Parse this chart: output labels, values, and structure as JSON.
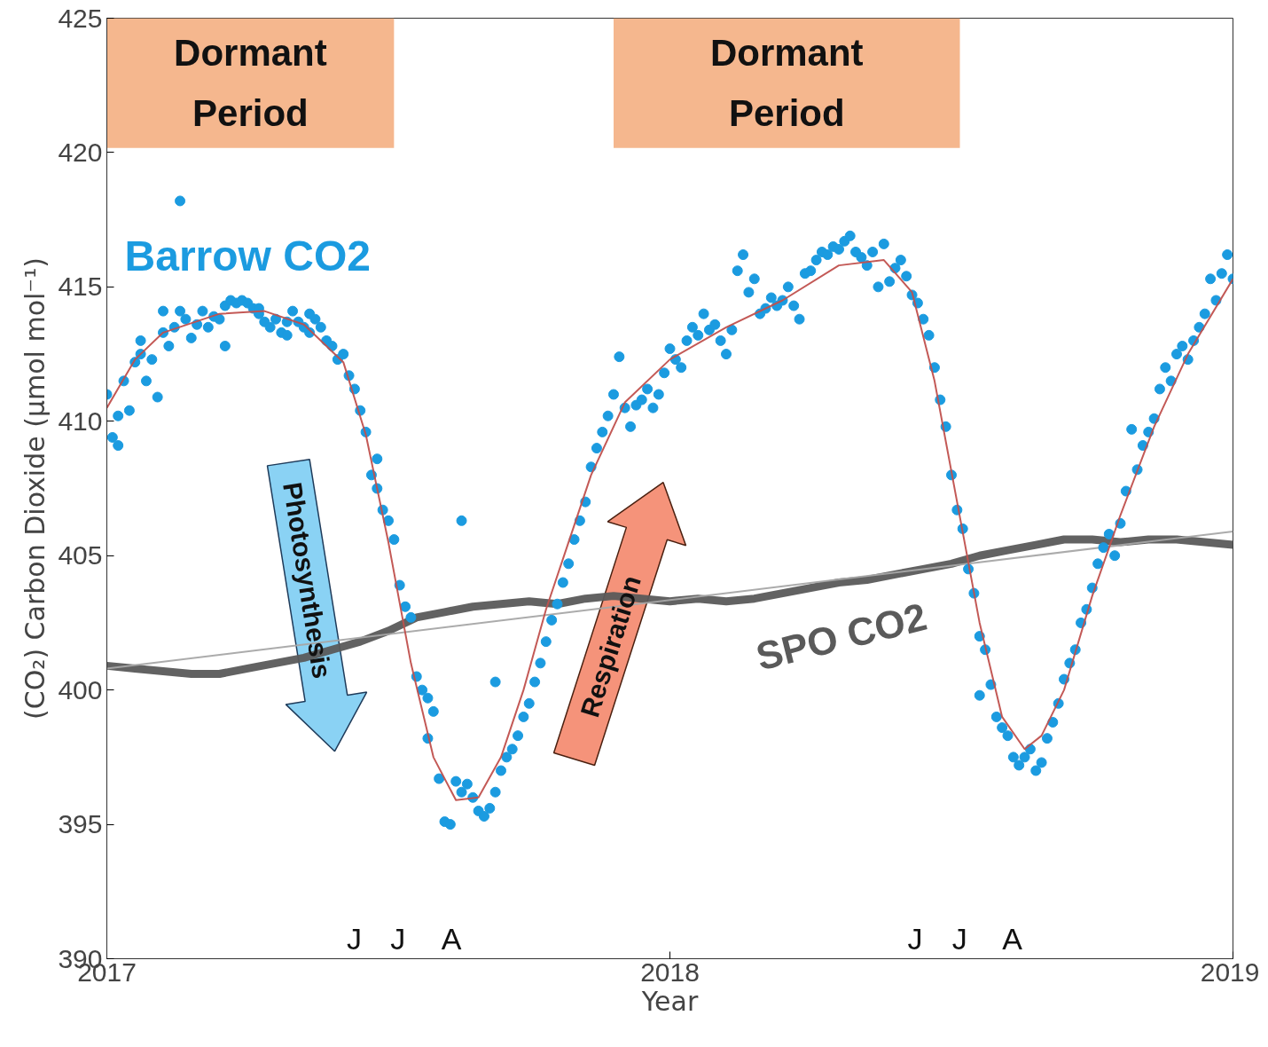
{
  "chart_data": {
    "type": "scatter",
    "xlabel": "Year",
    "ylabel": "(CO₂) Carbon Dioxide (μmol mol⁻¹)",
    "xlim": [
      2017,
      2019
    ],
    "xticks": [
      2017,
      2018,
      2019
    ],
    "ylim": [
      390,
      425
    ],
    "yticks": [
      390,
      395,
      400,
      405,
      410,
      415,
      420,
      425
    ],
    "grid": false,
    "bands": [
      {
        "axis": "x",
        "from": 2017.0,
        "to": 2017.51,
        "label": "Dormant Period",
        "color": "#f5b78e"
      },
      {
        "axis": "x",
        "from": 2017.9,
        "to": 2018.515,
        "label": "Dormant Period",
        "color": "#f5b78e"
      }
    ],
    "annotations": [
      "Photosynthesis",
      "Respiration",
      "J",
      "J",
      "A",
      "J",
      "J",
      "A"
    ],
    "series": [
      {
        "name": "SPO CO2",
        "type": "line",
        "color": "#5a5a5a",
        "x": [
          2017.0,
          2017.05,
          2017.1,
          2017.15,
          2017.2,
          2017.25,
          2017.3,
          2017.35,
          2017.4,
          2017.45,
          2017.5,
          2017.55,
          2017.6,
          2017.65,
          2017.7,
          2017.75,
          2017.8,
          2017.85,
          2017.9,
          2017.95,
          2018.0,
          2018.05,
          2018.1,
          2018.15,
          2018.2,
          2018.25,
          2018.3,
          2018.35,
          2018.4,
          2018.45,
          2018.5,
          2018.55,
          2018.6,
          2018.65,
          2018.7,
          2018.75,
          2018.8,
          2018.85,
          2018.9,
          2018.95,
          2019.0
        ],
        "values": [
          400.9,
          400.8,
          400.7,
          400.6,
          400.6,
          400.8,
          401.0,
          401.2,
          401.5,
          401.8,
          402.2,
          402.7,
          402.9,
          403.1,
          403.2,
          403.3,
          403.2,
          403.4,
          403.5,
          403.4,
          403.3,
          403.4,
          403.3,
          403.4,
          403.6,
          403.8,
          404.0,
          404.1,
          404.3,
          404.5,
          404.7,
          405.0,
          405.2,
          405.4,
          405.6,
          405.6,
          405.5,
          405.6,
          405.6,
          405.5,
          405.4
        ]
      },
      {
        "type": "line",
        "color": "#a6a6a6",
        "x": [
          2017.0,
          2019.0
        ],
        "values": [
          400.8,
          405.9
        ]
      },
      {
        "name": "Barrow CO2",
        "color": "#1b9be0",
        "marker": "circle",
        "x": [
          2017.0,
          2017.01,
          2017.02,
          2017.02,
          2017.03,
          2017.04,
          2017.05,
          2017.06,
          2017.06,
          2017.07,
          2017.08,
          2017.09,
          2017.1,
          2017.1,
          2017.11,
          2017.12,
          2017.13,
          2017.13,
          2017.14,
          2017.15,
          2017.16,
          2017.17,
          2017.18,
          2017.19,
          2017.2,
          2017.21,
          2017.21,
          2017.22,
          2017.23,
          2017.24,
          2017.25,
          2017.26,
          2017.27,
          2017.27,
          2017.28,
          2017.29,
          2017.3,
          2017.31,
          2017.32,
          2017.32,
          2017.33,
          2017.34,
          2017.35,
          2017.36,
          2017.36,
          2017.37,
          2017.38,
          2017.39,
          2017.4,
          2017.41,
          2017.42,
          2017.43,
          2017.44,
          2017.45,
          2017.46,
          2017.47,
          2017.48,
          2017.48,
          2017.49,
          2017.5,
          2017.51,
          2017.52,
          2017.53,
          2017.54,
          2017.55,
          2017.56,
          2017.57,
          2017.57,
          2017.58,
          2017.59,
          2017.6,
          2017.61,
          2017.62,
          2017.63,
          2017.64,
          2017.65,
          2017.66,
          2017.67,
          2017.68,
          2017.69,
          2017.7,
          2017.71,
          2017.72,
          2017.73,
          2017.74,
          2017.75,
          2017.76,
          2017.69,
          2017.63,
          2017.77,
          2017.78,
          2017.79,
          2017.8,
          2017.81,
          2017.82,
          2017.83,
          2017.84,
          2017.85,
          2017.86,
          2017.87,
          2017.88,
          2017.89,
          2017.9,
          2017.91,
          2017.92,
          2017.93,
          2017.94,
          2017.95,
          2017.96,
          2017.97,
          2017.98,
          2017.99,
          2018.0,
          2018.01,
          2018.02,
          2018.03,
          2018.04,
          2018.05,
          2018.06,
          2018.07,
          2018.08,
          2018.09,
          2018.1,
          2018.11,
          2018.12,
          2018.13,
          2018.14,
          2018.15,
          2018.16,
          2018.17,
          2018.18,
          2018.19,
          2018.2,
          2018.21,
          2018.22,
          2018.23,
          2018.24,
          2018.25,
          2018.26,
          2018.27,
          2018.28,
          2018.29,
          2018.3,
          2018.31,
          2018.32,
          2018.33,
          2018.34,
          2018.35,
          2018.36,
          2018.37,
          2018.38,
          2018.39,
          2018.4,
          2018.41,
          2018.42,
          2018.43,
          2018.44,
          2018.45,
          2018.46,
          2018.47,
          2018.48,
          2018.49,
          2018.5,
          2018.51,
          2018.52,
          2018.53,
          2018.54,
          2018.55,
          2018.56,
          2018.55,
          2018.57,
          2018.58,
          2018.59,
          2018.6,
          2018.61,
          2018.62,
          2018.63,
          2018.64,
          2018.65,
          2018.66,
          2018.67,
          2018.68,
          2018.69,
          2018.7,
          2018.71,
          2018.72,
          2018.73,
          2018.74,
          2018.75,
          2018.76,
          2018.77,
          2018.78,
          2018.79,
          2018.8,
          2018.81,
          2018.82,
          2018.83,
          2018.84,
          2018.85,
          2018.86,
          2018.87,
          2018.88,
          2018.89,
          2018.9,
          2018.91,
          2018.92,
          2018.93,
          2018.94,
          2018.95,
          2018.96,
          2018.97,
          2018.98,
          2018.99,
          2019.0
        ],
        "values": [
          411.0,
          409.4,
          409.1,
          410.2,
          411.5,
          410.4,
          412.2,
          412.5,
          413.0,
          411.5,
          412.3,
          410.9,
          414.1,
          413.3,
          412.8,
          413.5,
          414.1,
          418.2,
          413.8,
          413.1,
          413.6,
          414.1,
          413.5,
          413.9,
          413.8,
          412.8,
          414.3,
          414.5,
          414.4,
          414.5,
          414.4,
          414.2,
          414.2,
          414.0,
          413.7,
          413.5,
          413.8,
          413.3,
          413.2,
          413.7,
          414.1,
          413.7,
          413.5,
          413.3,
          414.0,
          413.8,
          413.5,
          413.0,
          412.8,
          412.3,
          412.5,
          411.7,
          411.2,
          410.4,
          409.6,
          408.0,
          408.6,
          407.5,
          406.7,
          406.3,
          405.6,
          403.9,
          403.1,
          402.7,
          400.5,
          400.0,
          399.7,
          398.2,
          399.2,
          396.7,
          395.1,
          395.0,
          396.6,
          396.2,
          396.5,
          396.0,
          395.5,
          395.3,
          395.6,
          396.2,
          397.0,
          397.5,
          397.8,
          398.3,
          399.0,
          399.5,
          400.3,
          400.3,
          406.3,
          401.0,
          401.8,
          402.6,
          403.2,
          404.0,
          404.7,
          405.6,
          406.3,
          407.0,
          408.3,
          409.0,
          409.6,
          410.2,
          411.0,
          412.4,
          410.5,
          409.8,
          410.6,
          410.8,
          411.2,
          410.5,
          411.0,
          411.8,
          412.7,
          412.3,
          412.0,
          413.0,
          413.5,
          413.2,
          414.0,
          413.4,
          413.6,
          413.0,
          412.5,
          413.4,
          415.6,
          416.2,
          414.8,
          415.3,
          414.0,
          414.2,
          414.6,
          414.3,
          414.5,
          415.0,
          414.3,
          413.8,
          415.5,
          415.6,
          416.0,
          416.3,
          416.2,
          416.5,
          416.4,
          416.7,
          416.9,
          416.3,
          416.1,
          415.8,
          416.3,
          415.0,
          416.6,
          415.2,
          415.7,
          416.0,
          415.4,
          414.7,
          414.4,
          413.8,
          413.2,
          412.0,
          410.8,
          409.8,
          408.0,
          406.7,
          406.0,
          404.5,
          403.6,
          402.0,
          401.5,
          399.8,
          400.2,
          399.0,
          398.6,
          398.3,
          397.5,
          397.2,
          397.5,
          397.8,
          397.0,
          397.3,
          398.2,
          398.8,
          399.5,
          400.4,
          401.0,
          401.5,
          402.5,
          403.0,
          403.8,
          404.7,
          405.3,
          405.8,
          405.0,
          406.2,
          407.4,
          409.7,
          408.2,
          409.1,
          409.6,
          410.1,
          411.2,
          412.0,
          411.5,
          412.5,
          412.8,
          412.3,
          413.0,
          413.5,
          414.0,
          415.3,
          414.5,
          415.5,
          416.2,
          415.3
        ]
      },
      {
        "type": "line",
        "color": "#c0504d",
        "x": [
          2017.0,
          2017.05,
          2017.1,
          2017.2,
          2017.28,
          2017.35,
          2017.42,
          2017.46,
          2017.5,
          2017.54,
          2017.58,
          2017.62,
          2017.66,
          2017.7,
          2017.74,
          2017.78,
          2017.82,
          2017.86,
          2017.92,
          2018.0,
          2018.1,
          2018.2,
          2018.3,
          2018.38,
          2018.43,
          2018.47,
          2018.51,
          2018.55,
          2018.59,
          2018.63,
          2018.66,
          2018.7,
          2018.75,
          2018.8,
          2018.86,
          2018.92,
          2019.0
        ],
        "values": [
          410.5,
          412.3,
          413.3,
          414.0,
          414.1,
          413.6,
          412.2,
          409.5,
          405.5,
          401.0,
          397.5,
          395.9,
          396.0,
          397.5,
          400.0,
          403.0,
          405.5,
          408.0,
          410.7,
          412.3,
          413.5,
          414.5,
          415.8,
          416.0,
          414.8,
          411.5,
          407.0,
          402.5,
          399.0,
          397.8,
          398.3,
          400.0,
          403.5,
          406.5,
          409.8,
          412.5,
          415.3
        ]
      }
    ]
  }
}
